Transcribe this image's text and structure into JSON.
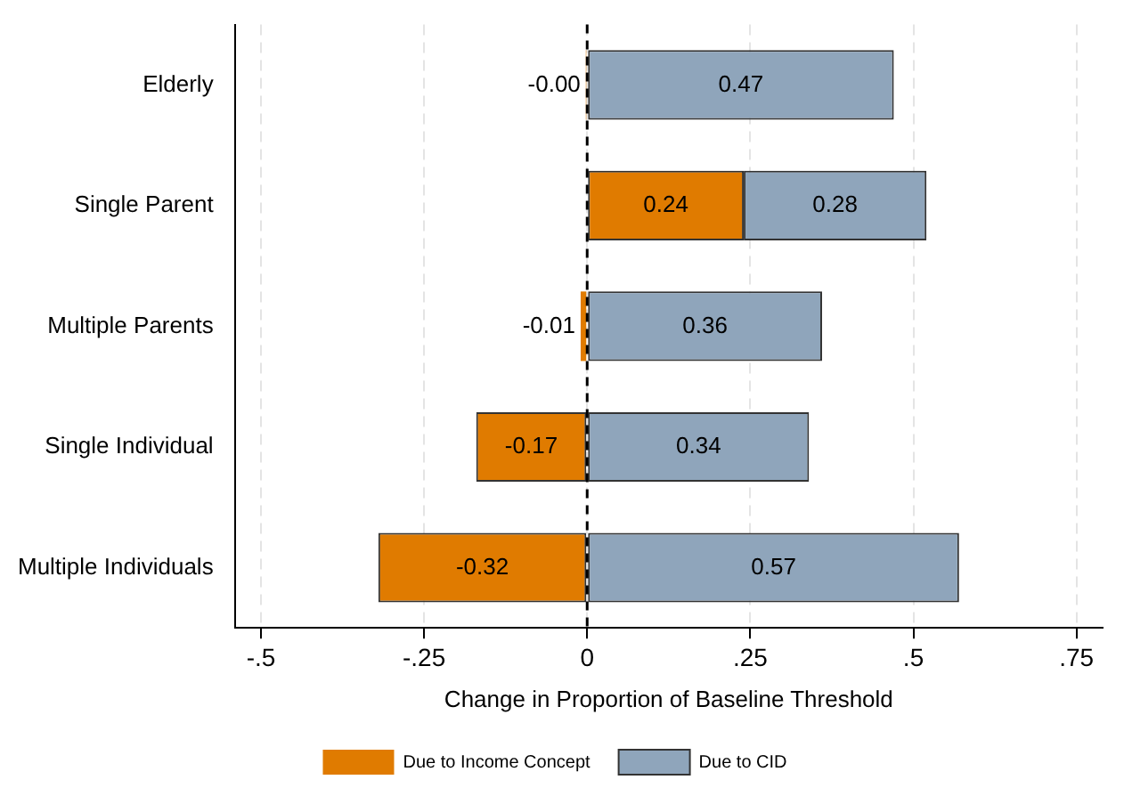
{
  "chart_data": {
    "type": "bar",
    "orientation": "horizontal",
    "stacked": true,
    "xlabel": "Change in Proportion of Baseline Threshold",
    "categories": [
      "Elderly",
      "Single Parent",
      "Multiple Parents",
      "Single Individual",
      "Multiple Individuals"
    ],
    "series": [
      {
        "name": "Due to Income Concept",
        "color": "#e07b00",
        "values": [
          -0.002,
          0.24,
          -0.01,
          -0.17,
          -0.32
        ],
        "value_labels": [
          "-0.00",
          "0.24",
          "-0.01",
          "-0.17",
          "-0.32"
        ]
      },
      {
        "name": "Due to CID",
        "color": "#8fa5bb",
        "values": [
          0.47,
          0.28,
          0.36,
          0.34,
          0.57
        ],
        "value_labels": [
          "0.47",
          "0.28",
          "0.36",
          "0.34",
          "0.57"
        ]
      }
    ],
    "xlim": [
      -0.54,
      0.79
    ],
    "xticks": [
      {
        "value": -0.5,
        "label": "-.5"
      },
      {
        "value": -0.25,
        "label": "-.25"
      },
      0,
      {
        "value": 0.25,
        "label": ".25"
      },
      {
        "value": 0.5,
        "label": ".5"
      },
      {
        "value": 0.75,
        "label": ".75"
      }
    ],
    "grid": "x",
    "legend": "bottom",
    "ref_lines": [
      {
        "axis": "x",
        "value": 0,
        "line_style": "dashed",
        "color": "#000000"
      }
    ]
  }
}
